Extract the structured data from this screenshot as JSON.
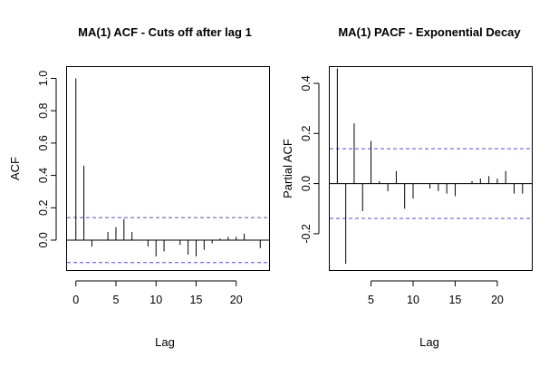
{
  "chart_data": [
    {
      "type": "bar",
      "title": "MA(1) ACF - Cuts off after lag 1",
      "xlabel": "Lag",
      "ylabel": "ACF",
      "xlim": [
        -1.1,
        24.1
      ],
      "ylim": [
        -0.185,
        1.07
      ],
      "x_ticks": [
        "0",
        "5",
        "10",
        "15",
        "20"
      ],
      "y_ticks": [
        "0.0",
        "0.2",
        "0.4",
        "0.6",
        "0.8",
        "1.0"
      ],
      "confidence_band": [
        -0.139,
        0.139
      ],
      "band_color": "#4d4ddb",
      "lags": [
        0,
        1,
        2,
        3,
        4,
        5,
        6,
        7,
        8,
        9,
        10,
        11,
        12,
        13,
        14,
        15,
        16,
        17,
        18,
        19,
        20,
        21,
        22,
        23
      ],
      "values": [
        1.0,
        0.46,
        -0.04,
        0.0,
        0.05,
        0.08,
        0.13,
        0.05,
        0.0,
        -0.04,
        -0.1,
        -0.07,
        0.0,
        -0.03,
        -0.09,
        -0.1,
        -0.06,
        -0.02,
        0.01,
        0.02,
        0.02,
        0.04,
        0.0,
        -0.05
      ]
    },
    {
      "type": "bar",
      "title": "MA(1) PACF - Exponential Decay",
      "xlabel": "Lag",
      "ylabel": "Partial ACF",
      "xlim": [
        0.1,
        24.1
      ],
      "ylim": [
        -0.345,
        0.465
      ],
      "x_ticks": [
        "5",
        "10",
        "15",
        "20"
      ],
      "y_ticks": [
        "-0.2",
        "0.0",
        "0.2",
        "0.4"
      ],
      "confidence_band": [
        -0.139,
        0.139
      ],
      "band_color": "#4d4ddb",
      "lags": [
        1,
        2,
        3,
        4,
        5,
        6,
        7,
        8,
        9,
        10,
        11,
        12,
        13,
        14,
        15,
        16,
        17,
        18,
        19,
        20,
        21,
        22,
        23
      ],
      "values": [
        0.46,
        -0.32,
        0.24,
        -0.11,
        0.17,
        0.01,
        -0.03,
        0.05,
        -0.1,
        -0.06,
        0.0,
        -0.02,
        -0.03,
        -0.04,
        -0.05,
        0.0,
        0.01,
        0.02,
        0.03,
        0.02,
        0.05,
        -0.04,
        -0.04
      ]
    }
  ]
}
